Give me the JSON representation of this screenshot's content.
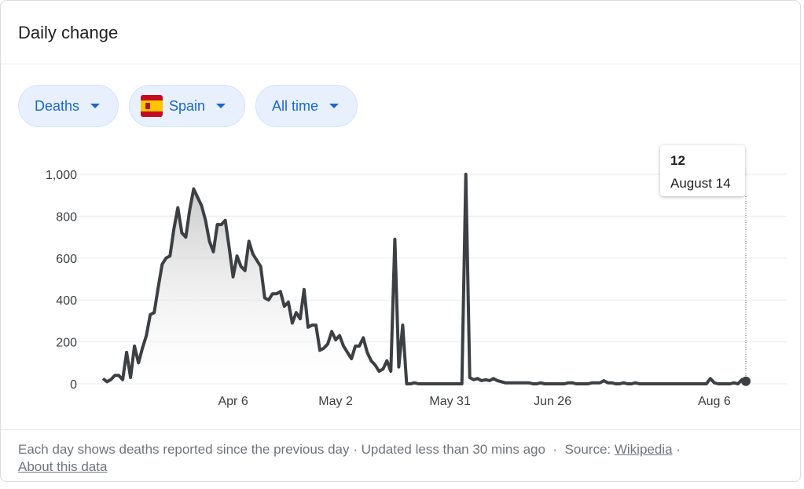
{
  "card": {
    "title": "Daily change"
  },
  "filters": {
    "metric": "Deaths",
    "region": "Spain",
    "region_flag_icon": "spain-flag-icon",
    "period": "All time"
  },
  "tooltip": {
    "value": "12",
    "date": "August 14"
  },
  "footer": {
    "description": "Each day shows deaths reported since the previous day",
    "separator1": " · ",
    "updated": "Updated less than 30 mins ago",
    "separator2": "  ·  ",
    "source_label": "Source: ",
    "source_link": "Wikipedia",
    "separator3": " · ",
    "about_link": "About this data"
  },
  "colors": {
    "accent": "#1967d2",
    "chip_bg": "#e8f0fe",
    "line": "#3c4043",
    "grid": "#e8eaed"
  },
  "chart_data": {
    "type": "area",
    "title": "",
    "xlabel": "",
    "ylabel": "",
    "ylim": [
      0,
      1000
    ],
    "yticks": [
      0,
      200,
      400,
      600,
      800,
      1000
    ],
    "ytick_labels": [
      "0",
      "200",
      "400",
      "600",
      "800",
      "1,000"
    ],
    "x_range": [
      "2020-03-04",
      "2020-08-14"
    ],
    "xtick_labels": [
      {
        "date": "2020-04-06",
        "label": "Apr 6"
      },
      {
        "date": "2020-05-02",
        "label": "May 2"
      },
      {
        "date": "2020-05-31",
        "label": "May 31"
      },
      {
        "date": "2020-06-26",
        "label": "Jun 26"
      },
      {
        "date": "2020-08-06",
        "label": "Aug 6"
      }
    ],
    "grid": true,
    "series": [
      {
        "values": [
          {
            "date": "2020-03-04",
            "value": 25
          },
          {
            "date": "2020-03-05",
            "value": 10
          },
          {
            "date": "2020-03-06",
            "value": 20
          },
          {
            "date": "2020-03-07",
            "value": 40
          },
          {
            "date": "2020-03-08",
            "value": 40
          },
          {
            "date": "2020-03-09",
            "value": 20
          },
          {
            "date": "2020-03-10",
            "value": 150
          },
          {
            "date": "2020-03-11",
            "value": 30
          },
          {
            "date": "2020-03-12",
            "value": 180
          },
          {
            "date": "2020-03-13",
            "value": 100
          },
          {
            "date": "2020-03-14",
            "value": 170
          },
          {
            "date": "2020-03-15",
            "value": 230
          },
          {
            "date": "2020-03-16",
            "value": 330
          },
          {
            "date": "2020-03-17",
            "value": 340
          },
          {
            "date": "2020-03-18",
            "value": 460
          },
          {
            "date": "2020-03-19",
            "value": 570
          },
          {
            "date": "2020-03-20",
            "value": 600
          },
          {
            "date": "2020-03-21",
            "value": 610
          },
          {
            "date": "2020-03-22",
            "value": 740
          },
          {
            "date": "2020-03-23",
            "value": 840
          },
          {
            "date": "2020-03-24",
            "value": 720
          },
          {
            "date": "2020-03-25",
            "value": 700
          },
          {
            "date": "2020-03-26",
            "value": 830
          },
          {
            "date": "2020-03-27",
            "value": 930
          },
          {
            "date": "2020-03-28",
            "value": 890
          },
          {
            "date": "2020-03-29",
            "value": 850
          },
          {
            "date": "2020-03-30",
            "value": 780
          },
          {
            "date": "2020-03-31",
            "value": 680
          },
          {
            "date": "2020-04-01",
            "value": 630
          },
          {
            "date": "2020-04-02",
            "value": 760
          },
          {
            "date": "2020-04-03",
            "value": 760
          },
          {
            "date": "2020-04-04",
            "value": 780
          },
          {
            "date": "2020-04-05",
            "value": 650
          },
          {
            "date": "2020-04-06",
            "value": 510
          },
          {
            "date": "2020-04-07",
            "value": 610
          },
          {
            "date": "2020-04-08",
            "value": 560
          },
          {
            "date": "2020-04-09",
            "value": 540
          },
          {
            "date": "2020-04-10",
            "value": 680
          },
          {
            "date": "2020-04-11",
            "value": 620
          },
          {
            "date": "2020-04-12",
            "value": 590
          },
          {
            "date": "2020-04-13",
            "value": 560
          },
          {
            "date": "2020-04-14",
            "value": 410
          },
          {
            "date": "2020-04-15",
            "value": 400
          },
          {
            "date": "2020-04-16",
            "value": 430
          },
          {
            "date": "2020-04-17",
            "value": 430
          },
          {
            "date": "2020-04-18",
            "value": 440
          },
          {
            "date": "2020-04-19",
            "value": 370
          },
          {
            "date": "2020-04-20",
            "value": 390
          },
          {
            "date": "2020-04-21",
            "value": 290
          },
          {
            "date": "2020-04-22",
            "value": 340
          },
          {
            "date": "2020-04-23",
            "value": 310
          },
          {
            "date": "2020-04-24",
            "value": 450
          },
          {
            "date": "2020-04-25",
            "value": 270
          },
          {
            "date": "2020-04-26",
            "value": 280
          },
          {
            "date": "2020-04-27",
            "value": 280
          },
          {
            "date": "2020-04-28",
            "value": 160
          },
          {
            "date": "2020-04-29",
            "value": 170
          },
          {
            "date": "2020-04-30",
            "value": 190
          },
          {
            "date": "2020-05-01",
            "value": 250
          },
          {
            "date": "2020-05-02",
            "value": 210
          },
          {
            "date": "2020-05-03",
            "value": 230
          },
          {
            "date": "2020-05-04",
            "value": 180
          },
          {
            "date": "2020-05-05",
            "value": 150
          },
          {
            "date": "2020-05-06",
            "value": 120
          },
          {
            "date": "2020-05-07",
            "value": 180
          },
          {
            "date": "2020-05-08",
            "value": 180
          },
          {
            "date": "2020-05-09",
            "value": 220
          },
          {
            "date": "2020-05-10",
            "value": 150
          },
          {
            "date": "2020-05-11",
            "value": 110
          },
          {
            "date": "2020-05-12",
            "value": 90
          },
          {
            "date": "2020-05-13",
            "value": 60
          },
          {
            "date": "2020-05-14",
            "value": 70
          },
          {
            "date": "2020-05-15",
            "value": 110
          },
          {
            "date": "2020-05-16",
            "value": 60
          },
          {
            "date": "2020-05-17",
            "value": 690
          },
          {
            "date": "2020-05-18",
            "value": 80
          },
          {
            "date": "2020-05-19",
            "value": 280
          },
          {
            "date": "2020-05-20",
            "value": 0
          },
          {
            "date": "2020-05-21",
            "value": 0
          },
          {
            "date": "2020-05-22",
            "value": 5
          },
          {
            "date": "2020-05-23",
            "value": 0
          },
          {
            "date": "2020-05-24",
            "value": 0
          },
          {
            "date": "2020-05-25",
            "value": 0
          },
          {
            "date": "2020-05-26",
            "value": 0
          },
          {
            "date": "2020-05-27",
            "value": 0
          },
          {
            "date": "2020-05-28",
            "value": 0
          },
          {
            "date": "2020-05-29",
            "value": 0
          },
          {
            "date": "2020-05-30",
            "value": 0
          },
          {
            "date": "2020-05-31",
            "value": 0
          },
          {
            "date": "2020-06-01",
            "value": 0
          },
          {
            "date": "2020-06-02",
            "value": 0
          },
          {
            "date": "2020-06-03",
            "value": 0
          },
          {
            "date": "2020-06-04",
            "value": 1000
          },
          {
            "date": "2020-06-05",
            "value": 30
          },
          {
            "date": "2020-06-06",
            "value": 20
          },
          {
            "date": "2020-06-07",
            "value": 25
          },
          {
            "date": "2020-06-08",
            "value": 15
          },
          {
            "date": "2020-06-09",
            "value": 20
          },
          {
            "date": "2020-06-10",
            "value": 15
          },
          {
            "date": "2020-06-11",
            "value": 25
          },
          {
            "date": "2020-06-12",
            "value": 15
          },
          {
            "date": "2020-06-13",
            "value": 10
          },
          {
            "date": "2020-06-14",
            "value": 5
          },
          {
            "date": "2020-06-15",
            "value": 5
          },
          {
            "date": "2020-06-16",
            "value": 5
          },
          {
            "date": "2020-06-17",
            "value": 5
          },
          {
            "date": "2020-06-18",
            "value": 5
          },
          {
            "date": "2020-06-19",
            "value": 5
          },
          {
            "date": "2020-06-20",
            "value": 5
          },
          {
            "date": "2020-06-21",
            "value": 0
          },
          {
            "date": "2020-06-22",
            "value": 0
          },
          {
            "date": "2020-06-23",
            "value": 5
          },
          {
            "date": "2020-06-24",
            "value": 0
          },
          {
            "date": "2020-06-25",
            "value": 0
          },
          {
            "date": "2020-06-26",
            "value": 0
          },
          {
            "date": "2020-06-27",
            "value": 0
          },
          {
            "date": "2020-06-28",
            "value": 0
          },
          {
            "date": "2020-06-29",
            "value": 0
          },
          {
            "date": "2020-06-30",
            "value": 5
          },
          {
            "date": "2020-07-01",
            "value": 5
          },
          {
            "date": "2020-07-02",
            "value": 0
          },
          {
            "date": "2020-07-03",
            "value": 0
          },
          {
            "date": "2020-07-04",
            "value": 0
          },
          {
            "date": "2020-07-05",
            "value": 0
          },
          {
            "date": "2020-07-06",
            "value": 5
          },
          {
            "date": "2020-07-07",
            "value": 5
          },
          {
            "date": "2020-07-08",
            "value": 5
          },
          {
            "date": "2020-07-09",
            "value": 15
          },
          {
            "date": "2020-07-10",
            "value": 5
          },
          {
            "date": "2020-07-11",
            "value": 5
          },
          {
            "date": "2020-07-12",
            "value": 0
          },
          {
            "date": "2020-07-13",
            "value": 0
          },
          {
            "date": "2020-07-14",
            "value": 5
          },
          {
            "date": "2020-07-15",
            "value": 0
          },
          {
            "date": "2020-07-16",
            "value": 0
          },
          {
            "date": "2020-07-17",
            "value": 5
          },
          {
            "date": "2020-07-18",
            "value": 0
          },
          {
            "date": "2020-07-19",
            "value": 0
          },
          {
            "date": "2020-07-20",
            "value": 0
          },
          {
            "date": "2020-07-21",
            "value": 0
          },
          {
            "date": "2020-07-22",
            "value": 0
          },
          {
            "date": "2020-07-23",
            "value": 0
          },
          {
            "date": "2020-07-24",
            "value": 0
          },
          {
            "date": "2020-07-25",
            "value": 0
          },
          {
            "date": "2020-07-26",
            "value": 0
          },
          {
            "date": "2020-07-27",
            "value": 0
          },
          {
            "date": "2020-07-28",
            "value": 0
          },
          {
            "date": "2020-07-29",
            "value": 0
          },
          {
            "date": "2020-07-30",
            "value": 0
          },
          {
            "date": "2020-07-31",
            "value": 0
          },
          {
            "date": "2020-08-01",
            "value": 0
          },
          {
            "date": "2020-08-02",
            "value": 0
          },
          {
            "date": "2020-08-03",
            "value": 0
          },
          {
            "date": "2020-08-04",
            "value": 0
          },
          {
            "date": "2020-08-05",
            "value": 25
          },
          {
            "date": "2020-08-06",
            "value": 5
          },
          {
            "date": "2020-08-07",
            "value": 0
          },
          {
            "date": "2020-08-08",
            "value": 0
          },
          {
            "date": "2020-08-09",
            "value": 0
          },
          {
            "date": "2020-08-10",
            "value": 0
          },
          {
            "date": "2020-08-11",
            "value": 5
          },
          {
            "date": "2020-08-12",
            "value": 0
          },
          {
            "date": "2020-08-13",
            "value": 20
          },
          {
            "date": "2020-08-14",
            "value": 12
          }
        ]
      }
    ]
  }
}
